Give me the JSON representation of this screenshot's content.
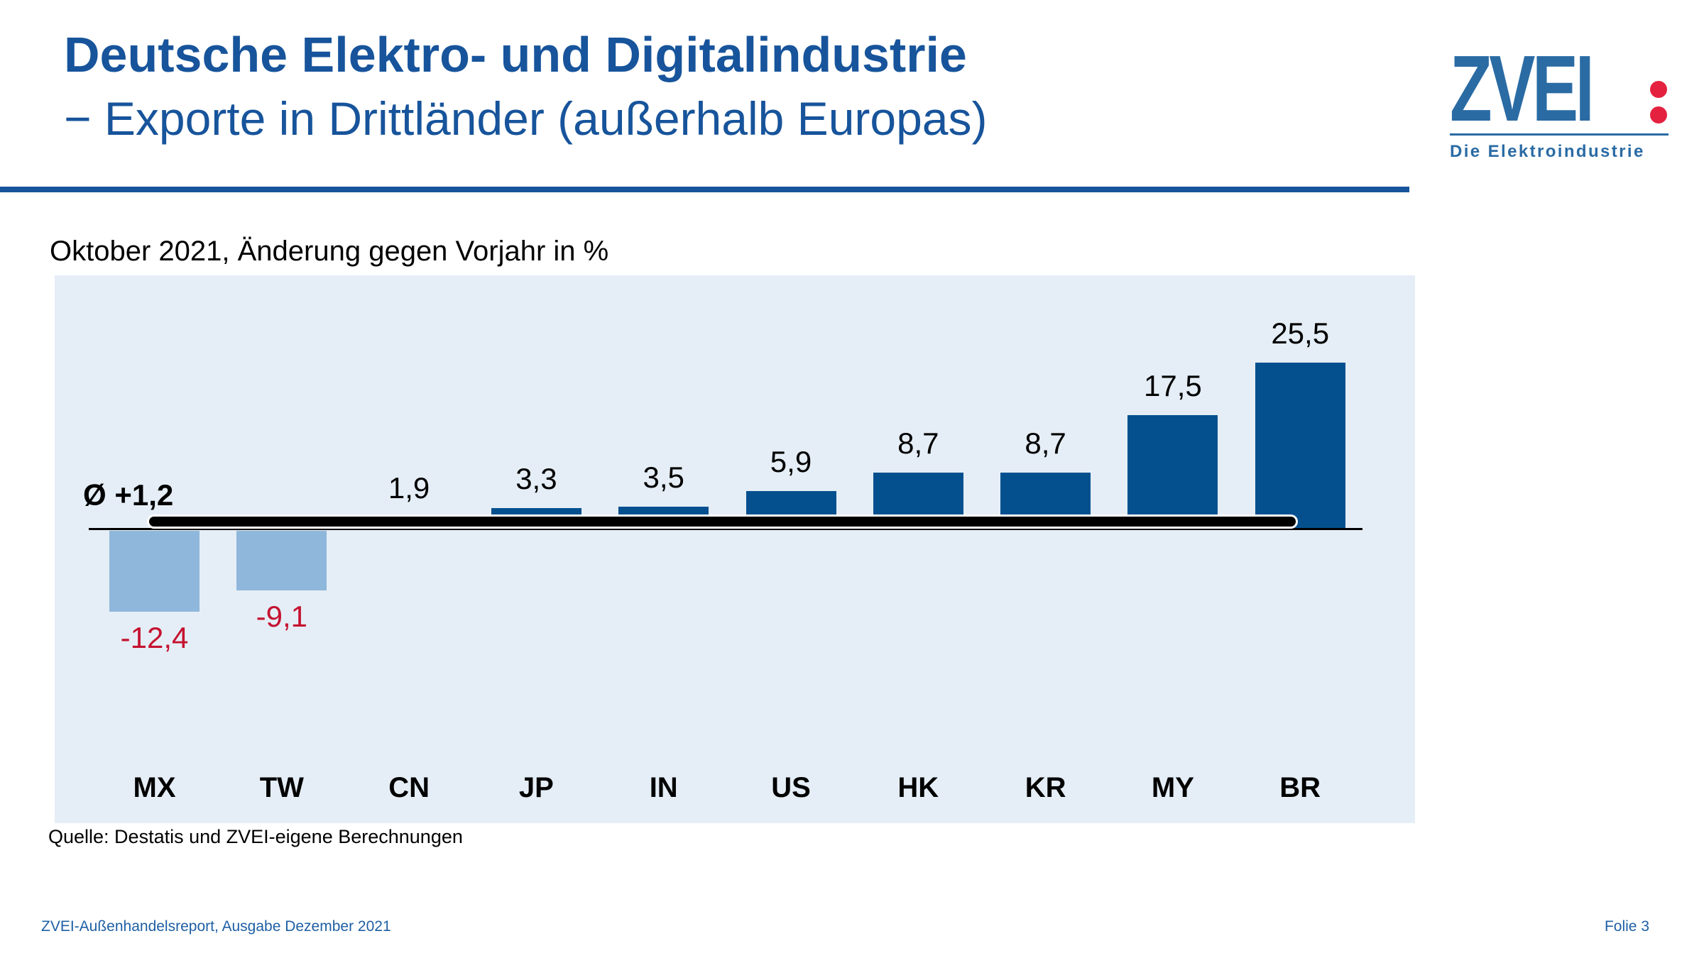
{
  "colors": {
    "title_blue": "#17549B",
    "logo_blue": "#2A6BA4",
    "logo_red": "#E4223F",
    "footer_blue": "#1E5FA4",
    "plot_background": "#E5EEF6"
  },
  "header": {
    "title_line1": "Deutsche Elektro- und Digitalindustrie",
    "title_line2": "− Exporte in Drittländer (außerhalb Europas)"
  },
  "logo": {
    "wordmark": "ZVEI",
    "tagline": "Die Elektroindustrie"
  },
  "chart_data": {
    "type": "bar",
    "title": "Oktober 2021, Änderung gegen Vorjahr in %",
    "categories": [
      "MX",
      "TW",
      "CN",
      "JP",
      "IN",
      "US",
      "HK",
      "KR",
      "MY",
      "BR"
    ],
    "values": [
      -12.4,
      -9.1,
      1.9,
      3.3,
      3.5,
      5.9,
      8.7,
      8.7,
      17.5,
      25.5
    ],
    "value_labels": [
      "-12,4",
      "-9,1",
      "1,9",
      "3,3",
      "3,5",
      "5,9",
      "8,7",
      "8,7",
      "17,5",
      "25,5"
    ],
    "average": {
      "label": "Ø +1,2",
      "value": 1.2
    },
    "xlabel": "",
    "ylabel": "",
    "ylim": [
      -16,
      30
    ],
    "grid": false,
    "legend": false,
    "bar_color_positive": "#04508F",
    "bar_color_negative": "#8FB7DB",
    "label_color_positive": "#000000",
    "label_color_negative": "#C51230",
    "average_line_color": "#000000"
  },
  "source": "Quelle: Destatis und ZVEI-eigene Berechnungen",
  "footer": {
    "left": "ZVEI-Außenhandelsreport, Ausgabe Dezember 2021",
    "right": "Folie 3"
  }
}
